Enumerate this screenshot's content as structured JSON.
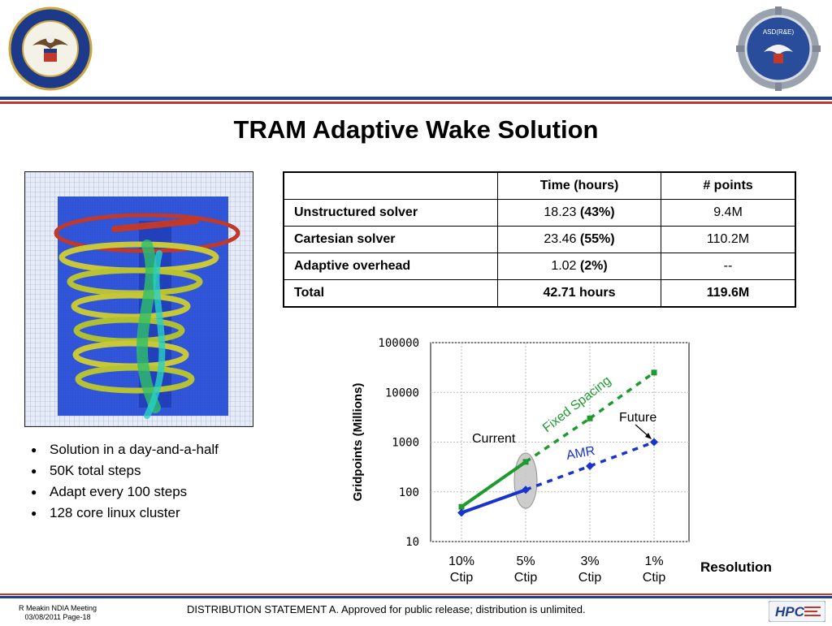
{
  "header": {
    "left_seal": {
      "icon": "dod-seal-icon",
      "text": "DEPARTMENT OF DEFENSE · UNITED STATES OF AMERICA"
    },
    "right_seal": {
      "icon": "asd-re-seal-icon",
      "text": "ASD(R&E)"
    },
    "stripe_colors": [
      "#1f3f8f",
      "#c0392b"
    ]
  },
  "title": "TRAM Adaptive Wake Solution",
  "image": {
    "icon": "rotor-wake-visualization-icon"
  },
  "bullets": [
    "Solution in a day-and-a-half",
    "50K total steps",
    "Adapt every 100 steps",
    "128 core linux cluster"
  ],
  "table": {
    "headers": [
      "",
      "Time (hours)",
      "# points"
    ],
    "rows": [
      {
        "label": "Unstructured solver",
        "time": "18.23 ",
        "pct": "(43%)",
        "points": "9.4M"
      },
      {
        "label": "Cartesian solver",
        "time": "23.46 ",
        "pct": "(55%)",
        "points": "110.2M"
      },
      {
        "label": "Adaptive overhead",
        "time": "1.02 ",
        "pct": "(2%)",
        "points": "--"
      },
      {
        "label": "Total",
        "time": "42.71 hours",
        "pct": "",
        "points": "119.6M"
      }
    ]
  },
  "chart_data": {
    "type": "line",
    "yscale": "log",
    "ylim": [
      10,
      100000
    ],
    "yticks": [
      "10",
      "100",
      "1000",
      "10000",
      "100000"
    ],
    "ylabel": "Gridpoints (Millions)",
    "categories": [
      "10%\nCtip",
      "5%\nCtip",
      "3%\nCtip",
      "1%\nCtip"
    ],
    "category_lines": [
      [
        "10%",
        "Ctip"
      ],
      [
        "5%",
        "Ctip"
      ],
      [
        "3%",
        "Ctip"
      ],
      [
        "1%",
        "Ctip"
      ]
    ],
    "xlabel": "Resolution",
    "series": [
      {
        "name": "Fixed Spacing",
        "color": "#1f9a2e",
        "values": [
          50,
          400,
          3000,
          25000
        ],
        "solid_until": 1
      },
      {
        "name": "AMR",
        "color": "#1a33cc",
        "values": [
          38,
          110,
          330,
          1000
        ],
        "solid_until": 1
      }
    ],
    "annotations": {
      "current": "Current",
      "future": "Future"
    },
    "grid": true
  },
  "footer": {
    "author_line1": "R Meakin NDIA Meeting",
    "author_line2": "03/08/2011 Page-18",
    "statement": "DISTRIBUTION STATEMENT A. Approved for public release; distribution is unlimited.",
    "logo_text": "HPC"
  }
}
